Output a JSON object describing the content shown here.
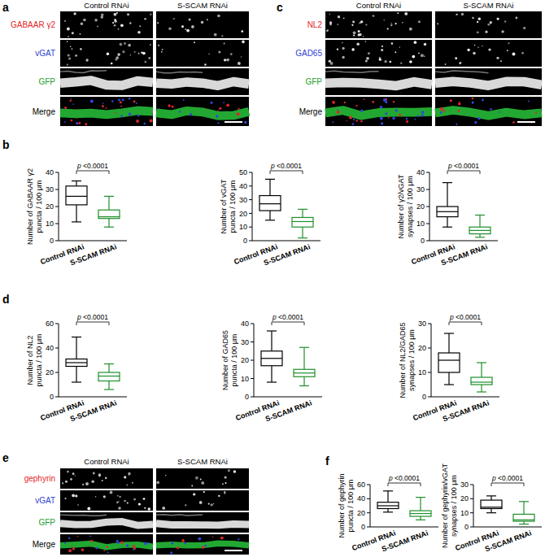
{
  "figure": {
    "image_panels": [
      {
        "letter": "a",
        "columns": [
          "Control RNAi",
          "S-SCAM RNAi"
        ],
        "rows": [
          {
            "label": "GABAAR γ2",
            "color": "#e3261f"
          },
          {
            "label": "vGAT",
            "color": "#2e3fd1"
          },
          {
            "label": "GFP",
            "color": "#1e9e2a"
          },
          {
            "label": "Merge",
            "color": "#000000"
          }
        ]
      },
      {
        "letter": "c",
        "columns": [
          "Control RNAi",
          "S-SCAM RNAi"
        ],
        "rows": [
          {
            "label": "NL2",
            "color": "#e3261f"
          },
          {
            "label": "GAD65",
            "color": "#2e3fd1"
          },
          {
            "label": "GFP",
            "color": "#1e9e2a"
          },
          {
            "label": "Merge",
            "color": "#000000"
          }
        ]
      },
      {
        "letter": "e",
        "columns": [
          "Control RNAi",
          "S-SCAM RNAi"
        ],
        "rows": [
          {
            "label": "gephyrin",
            "color": "#e3261f"
          },
          {
            "label": "vGAT",
            "color": "#2e3fd1"
          },
          {
            "label": "GFP",
            "color": "#1e9e2a"
          },
          {
            "label": "Merge",
            "color": "#000000"
          }
        ]
      }
    ],
    "chart_panel_letters": [
      "b",
      "d",
      "f"
    ]
  },
  "chart_data": [
    {
      "type": "box",
      "ylabel": [
        "Number of GABAAR γ2",
        "puncta / 100 μm"
      ],
      "categories": [
        "Control RNAi",
        "S-SCAM RNAi"
      ],
      "colors": [
        "#000000",
        "#1f8f2b"
      ],
      "min": [
        11,
        8
      ],
      "q1": [
        21,
        13
      ],
      "median": [
        26,
        14
      ],
      "q3": [
        32,
        18
      ],
      "max": [
        35,
        26
      ],
      "ylim": [
        0,
        40
      ],
      "yticks": [
        0,
        10,
        20,
        30,
        40
      ],
      "annotation": "p <0.0001"
    },
    {
      "type": "box",
      "ylabel": [
        "Number of vGAT",
        "puncta / 100 μm"
      ],
      "categories": [
        "Control RNAi",
        "S-SCAM RNAi"
      ],
      "colors": [
        "#000000",
        "#1f8f2b"
      ],
      "min": [
        15,
        2
      ],
      "q1": [
        22,
        10
      ],
      "median": [
        27,
        14
      ],
      "q3": [
        33,
        17
      ],
      "max": [
        45,
        23
      ],
      "ylim": [
        0,
        50
      ],
      "yticks": [
        0,
        10,
        20,
        30,
        40,
        50
      ],
      "annotation": "p <0.0001"
    },
    {
      "type": "box",
      "ylabel": [
        "Number of γ2/vGAT",
        "synapses / 100 μm"
      ],
      "categories": [
        "Control RNAi",
        "S-SCAM RNAi"
      ],
      "colors": [
        "#000000",
        "#1f8f2b"
      ],
      "min": [
        8,
        2
      ],
      "q1": [
        14,
        4
      ],
      "median": [
        17,
        6
      ],
      "q3": [
        20,
        8
      ],
      "max": [
        34,
        15
      ],
      "ylim": [
        0,
        40
      ],
      "yticks": [
        0,
        10,
        20,
        30,
        40
      ],
      "annotation": "p <0.0001"
    },
    {
      "type": "box",
      "ylabel": [
        "Number of NL2",
        "puncta / 100 μm"
      ],
      "categories": [
        "Control RNAi",
        "S-SCAM RNAi"
      ],
      "colors": [
        "#000000",
        "#1f8f2b"
      ],
      "min": [
        12,
        6
      ],
      "q1": [
        25,
        13
      ],
      "median": [
        28,
        17
      ],
      "q3": [
        31,
        20
      ],
      "max": [
        49,
        27
      ],
      "ylim": [
        0,
        60
      ],
      "yticks": [
        0,
        20,
        40,
        60
      ],
      "annotation": "p <0.0001"
    },
    {
      "type": "box",
      "ylabel": [
        "Number of GAD65",
        "puncta / 100 μm"
      ],
      "categories": [
        "Control RNAi",
        "S-SCAM RNAi"
      ],
      "colors": [
        "#000000",
        "#1f8f2b"
      ],
      "min": [
        8,
        6
      ],
      "q1": [
        17,
        11
      ],
      "median": [
        21,
        13
      ],
      "q3": [
        25,
        15
      ],
      "max": [
        36,
        27
      ],
      "ylim": [
        0,
        40
      ],
      "yticks": [
        0,
        10,
        20,
        30,
        40
      ],
      "annotation": "p <0.0001"
    },
    {
      "type": "box",
      "ylabel": [
        "Number of NL2/GAD65",
        "synapses / 100 μm"
      ],
      "categories": [
        "Control RNAi",
        "S-SCAM RNAi"
      ],
      "colors": [
        "#000000",
        "#1f8f2b"
      ],
      "min": [
        5,
        2
      ],
      "q1": [
        10,
        5
      ],
      "median": [
        15,
        6
      ],
      "q3": [
        18,
        8
      ],
      "max": [
        26,
        14
      ],
      "ylim": [
        0,
        30
      ],
      "yticks": [
        0,
        10,
        20,
        30
      ],
      "annotation": "p <0.0001"
    },
    {
      "type": "box",
      "ylabel": [
        "Number of gephyrin",
        "puncta / 100 μm"
      ],
      "categories": [
        "Control RNAi",
        "S-SCAM RNAi"
      ],
      "colors": [
        "#000000",
        "#1f8f2b"
      ],
      "min": [
        21,
        10
      ],
      "q1": [
        26,
        15
      ],
      "median": [
        30,
        19
      ],
      "q3": [
        35,
        23
      ],
      "max": [
        51,
        42
      ],
      "ylim": [
        0,
        60
      ],
      "yticks": [
        0,
        20,
        40,
        60
      ],
      "annotation": "p <0.0001"
    },
    {
      "type": "box",
      "ylabel": [
        "Number of gephyrin/vGAT",
        "synapses / 100 μm"
      ],
      "categories": [
        "Control RNAi",
        "S-SCAM RNAi"
      ],
      "colors": [
        "#000000",
        "#1f8f2b"
      ],
      "min": [
        10,
        2
      ],
      "q1": [
        13,
        4
      ],
      "median": [
        14,
        5
      ],
      "q3": [
        19,
        9
      ],
      "max": [
        22,
        18
      ],
      "ylim": [
        0,
        30
      ],
      "yticks": [
        0,
        10,
        20,
        30
      ],
      "annotation": "p <0.0001"
    }
  ]
}
